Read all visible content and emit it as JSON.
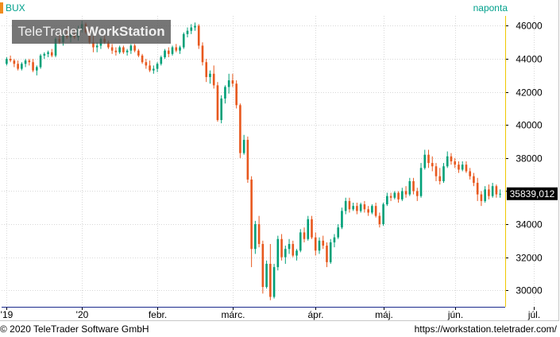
{
  "header": {
    "symbol": "BUX",
    "period": "naponta"
  },
  "watermark": {
    "brand": "TeleTrader",
    "product": "WorkStation"
  },
  "footer": {
    "copyright": "© 2020 TeleTrader Software GmbH",
    "url": "https://workstation.teletrader.com/"
  },
  "colors": {
    "up": "#00a078",
    "down": "#e8581e",
    "axis": "#f0c800",
    "grid": "#d8d8d8",
    "accent": "#00a08c"
  },
  "chart_data": {
    "type": "candlestick",
    "ylim": [
      29000,
      46600
    ],
    "y_ticks": [
      30000,
      32000,
      34000,
      36000,
      38000,
      40000,
      42000,
      44000,
      46000
    ],
    "y_tick_labels": [
      "30000",
      "32000",
      "34000",
      "36000",
      "38000",
      "40000",
      "42000",
      "44000",
      "46000"
    ],
    "x_ticks": [
      {
        "label": "'19",
        "index": 0
      },
      {
        "label": "'20",
        "index": 20
      },
      {
        "label": "febr.",
        "index": 40
      },
      {
        "label": "márc.",
        "index": 60
      },
      {
        "label": "ápr.",
        "index": 82
      },
      {
        "label": "máj.",
        "index": 100
      },
      {
        "label": "jún.",
        "index": 119
      },
      {
        "label": "júl.",
        "index": 140
      }
    ],
    "last_value": "35839,012",
    "candles": [
      [
        43700,
        44100,
        43600,
        44000
      ],
      [
        44000,
        44200,
        43800,
        43900
      ],
      [
        43900,
        44000,
        43500,
        43700
      ],
      [
        43700,
        43900,
        43300,
        43400
      ],
      [
        43400,
        43800,
        43300,
        43700
      ],
      [
        43700,
        44000,
        43500,
        43900
      ],
      [
        43900,
        44000,
        43600,
        43800
      ],
      [
        43800,
        44000,
        43200,
        43300
      ],
      [
        43300,
        43600,
        43000,
        43500
      ],
      [
        43500,
        44300,
        43400,
        44200
      ],
      [
        44200,
        44400,
        44000,
        44300
      ],
      [
        44300,
        44500,
        44100,
        44400
      ],
      [
        44400,
        44600,
        44100,
        44200
      ],
      [
        44200,
        45300,
        44100,
        45200
      ],
      [
        45200,
        45500,
        44900,
        45000
      ],
      [
        45000,
        45600,
        44800,
        45400
      ],
      [
        45400,
        45700,
        45200,
        45300
      ],
      [
        45300,
        45600,
        45000,
        45500
      ],
      [
        45500,
        45800,
        45200,
        45300
      ],
      [
        45300,
        46000,
        45100,
        45800
      ],
      [
        45800,
        46300,
        45600,
        46100
      ],
      [
        46100,
        46200,
        45500,
        45600
      ],
      [
        45600,
        45800,
        44900,
        45000
      ],
      [
        45000,
        45400,
        44400,
        44700
      ],
      [
        44700,
        45000,
        44400,
        44800
      ],
      [
        44800,
        45300,
        44600,
        45200
      ],
      [
        45200,
        45400,
        44900,
        45000
      ],
      [
        45000,
        45100,
        44600,
        44700
      ],
      [
        44700,
        44900,
        44300,
        44500
      ],
      [
        44500,
        44700,
        44200,
        44400
      ],
      [
        44400,
        44800,
        44300,
        44700
      ],
      [
        44700,
        44800,
        44300,
        44400
      ],
      [
        44400,
        44600,
        44200,
        44500
      ],
      [
        44500,
        44900,
        44300,
        44800
      ],
      [
        44800,
        44900,
        44400,
        44500
      ],
      [
        44500,
        44600,
        44100,
        44200
      ],
      [
        44200,
        44300,
        43700,
        43800
      ],
      [
        43800,
        44000,
        43400,
        43600
      ],
      [
        43600,
        43900,
        43200,
        43300
      ],
      [
        43300,
        43600,
        43100,
        43400
      ],
      [
        43400,
        43800,
        43200,
        43700
      ],
      [
        43700,
        44200,
        43600,
        44100
      ],
      [
        44100,
        44600,
        44000,
        44500
      ],
      [
        44500,
        44700,
        44100,
        44300
      ],
      [
        44300,
        44800,
        44200,
        44700
      ],
      [
        44700,
        44900,
        44400,
        44500
      ],
      [
        44500,
        44800,
        44300,
        44700
      ],
      [
        44700,
        45600,
        44600,
        45500
      ],
      [
        45500,
        45900,
        45300,
        45700
      ],
      [
        45700,
        46100,
        45500,
        45900
      ],
      [
        45900,
        46200,
        45700,
        46000
      ],
      [
        46000,
        46100,
        44600,
        44800
      ],
      [
        44800,
        45000,
        43600,
        43800
      ],
      [
        43800,
        44000,
        42600,
        42900
      ],
      [
        42900,
        43300,
        42500,
        43100
      ],
      [
        43100,
        43600,
        42200,
        42400
      ],
      [
        42400,
        42600,
        40200,
        40300
      ],
      [
        40300,
        41800,
        40100,
        41600
      ],
      [
        41600,
        42400,
        41300,
        42300
      ],
      [
        42300,
        43100,
        41900,
        42700
      ],
      [
        42700,
        43100,
        42300,
        42500
      ],
      [
        42500,
        42700,
        41000,
        41200
      ],
      [
        41200,
        41300,
        38000,
        38300
      ],
      [
        38300,
        39400,
        38200,
        39100
      ],
      [
        39100,
        39300,
        36500,
        36700
      ],
      [
        36700,
        36900,
        31400,
        32500
      ],
      [
        32500,
        34200,
        32200,
        34000
      ],
      [
        34000,
        34500,
        32600,
        32800
      ],
      [
        32800,
        33000,
        29800,
        30200
      ],
      [
        30200,
        31800,
        30100,
        31600
      ],
      [
        31600,
        32800,
        29400,
        29600
      ],
      [
        29600,
        31600,
        29500,
        31400
      ],
      [
        31400,
        33300,
        31200,
        33100
      ],
      [
        33100,
        33400,
        31800,
        32000
      ],
      [
        32000,
        32700,
        31600,
        32500
      ],
      [
        32500,
        33100,
        32200,
        32800
      ],
      [
        32800,
        33000,
        32000,
        32100
      ],
      [
        32100,
        32500,
        31800,
        32400
      ],
      [
        32400,
        33700,
        32300,
        33500
      ],
      [
        33500,
        33800,
        32900,
        33100
      ],
      [
        33100,
        34500,
        33000,
        34300
      ],
      [
        34300,
        34500,
        33100,
        33200
      ],
      [
        33200,
        33500,
        32100,
        32400
      ],
      [
        32400,
        33200,
        32200,
        33000
      ],
      [
        33000,
        33300,
        32500,
        32700
      ],
      [
        32700,
        32900,
        31400,
        31700
      ],
      [
        31700,
        33100,
        31600,
        32900
      ],
      [
        32900,
        33400,
        32600,
        33200
      ],
      [
        33200,
        34000,
        33100,
        33800
      ],
      [
        33800,
        35000,
        33700,
        34800
      ],
      [
        34800,
        35600,
        34600,
        35400
      ],
      [
        35400,
        35600,
        34700,
        34900
      ],
      [
        34900,
        35300,
        34800,
        35100
      ],
      [
        35100,
        35300,
        34600,
        34800
      ],
      [
        34800,
        35300,
        34700,
        35200
      ],
      [
        35200,
        35400,
        34700,
        34900
      ],
      [
        34900,
        35100,
        34500,
        34700
      ],
      [
        34700,
        35200,
        34600,
        35100
      ],
      [
        35100,
        35300,
        34400,
        34500
      ],
      [
        34500,
        34700,
        33800,
        34000
      ],
      [
        34000,
        35300,
        33900,
        35200
      ],
      [
        35200,
        35900,
        35100,
        35700
      ],
      [
        35700,
        35900,
        35400,
        35600
      ],
      [
        35600,
        36000,
        35500,
        35900
      ],
      [
        35900,
        36000,
        35300,
        35500
      ],
      [
        35500,
        36200,
        35400,
        36000
      ],
      [
        36000,
        36300,
        35600,
        35800
      ],
      [
        35800,
        36800,
        35700,
        36600
      ],
      [
        36600,
        36800,
        35800,
        36000
      ],
      [
        36000,
        36200,
        35400,
        35700
      ],
      [
        35700,
        37700,
        35600,
        37400
      ],
      [
        37400,
        38500,
        37300,
        38200
      ],
      [
        38200,
        38500,
        37400,
        37700
      ],
      [
        37700,
        38100,
        37200,
        37500
      ],
      [
        37500,
        37700,
        36600,
        36900
      ],
      [
        36900,
        37400,
        36400,
        36600
      ],
      [
        36600,
        37700,
        36500,
        37500
      ],
      [
        37500,
        38400,
        37400,
        38100
      ],
      [
        38100,
        38300,
        37600,
        37800
      ],
      [
        37800,
        38000,
        37400,
        37600
      ],
      [
        37600,
        37800,
        37100,
        37300
      ],
      [
        37300,
        37800,
        37200,
        37600
      ],
      [
        37600,
        37800,
        37100,
        37200
      ],
      [
        37200,
        37400,
        36700,
        36900
      ],
      [
        36900,
        37100,
        36300,
        36500
      ],
      [
        36500,
        36800,
        35400,
        35800
      ],
      [
        35800,
        36000,
        35100,
        35400
      ],
      [
        35400,
        36300,
        35300,
        36100
      ],
      [
        36100,
        36400,
        35500,
        35700
      ],
      [
        35700,
        36500,
        35600,
        36300
      ],
      [
        36300,
        36400,
        35600,
        35800
      ],
      [
        35800,
        36100,
        35600,
        35839
      ]
    ]
  }
}
